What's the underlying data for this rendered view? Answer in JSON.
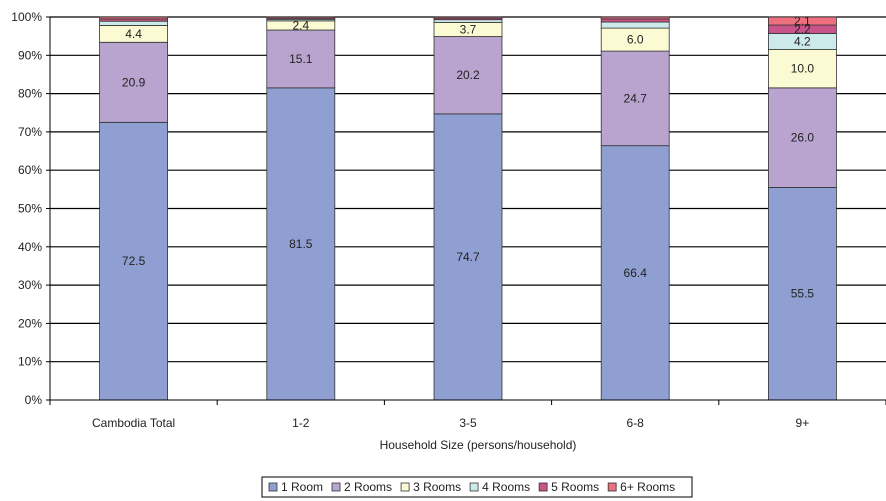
{
  "chart_data": {
    "type": "bar",
    "stacked": true,
    "title": "",
    "xlabel": "Household Size (persons/household)",
    "ylabel": "",
    "ylim": [
      0,
      100
    ],
    "yticks": [
      "0%",
      "10%",
      "20%",
      "30%",
      "40%",
      "50%",
      "60%",
      "70%",
      "80%",
      "90%",
      "100%"
    ],
    "categories": [
      "Cambodia Total",
      "1-2",
      "3-5",
      "6-8",
      "9+"
    ],
    "series": [
      {
        "name": "1 Room",
        "color": "#8f9fd2",
        "values": [
          72.5,
          81.5,
          74.7,
          66.4,
          55.5
        ]
      },
      {
        "name": "2 Rooms",
        "color": "#b9a4d0",
        "values": [
          20.9,
          15.1,
          20.2,
          24.7,
          26.0
        ]
      },
      {
        "name": "3 Rooms",
        "color": "#fbfad2",
        "values": [
          4.4,
          2.4,
          3.7,
          6.0,
          10.0
        ]
      },
      {
        "name": "4 Rooms",
        "color": "#cdeaea",
        "values": [
          1.1,
          0.4,
          0.7,
          1.6,
          4.2
        ]
      },
      {
        "name": "5 Rooms",
        "color": "#c8548a",
        "values": [
          0.6,
          0.3,
          0.4,
          0.8,
          2.2
        ]
      },
      {
        "name": "6+ Rooms",
        "color": "#ee6f7d",
        "values": [
          0.5,
          0.3,
          0.3,
          0.5,
          2.1
        ]
      }
    ],
    "data_labels": [
      [
        "72.5",
        "20.9",
        "4.4",
        "",
        "",
        ""
      ],
      [
        "81.5",
        "15.1",
        "2.4",
        "",
        "",
        ""
      ],
      [
        "74.7",
        "20.2",
        "3.7",
        "",
        "",
        ""
      ],
      [
        "66.4",
        "24.7",
        "6.0",
        "",
        "",
        ""
      ],
      [
        "55.5",
        "26.0",
        "10.0",
        "4.2",
        "2.2",
        "2.1"
      ]
    ],
    "grid": true,
    "legend": "bottom-center"
  }
}
